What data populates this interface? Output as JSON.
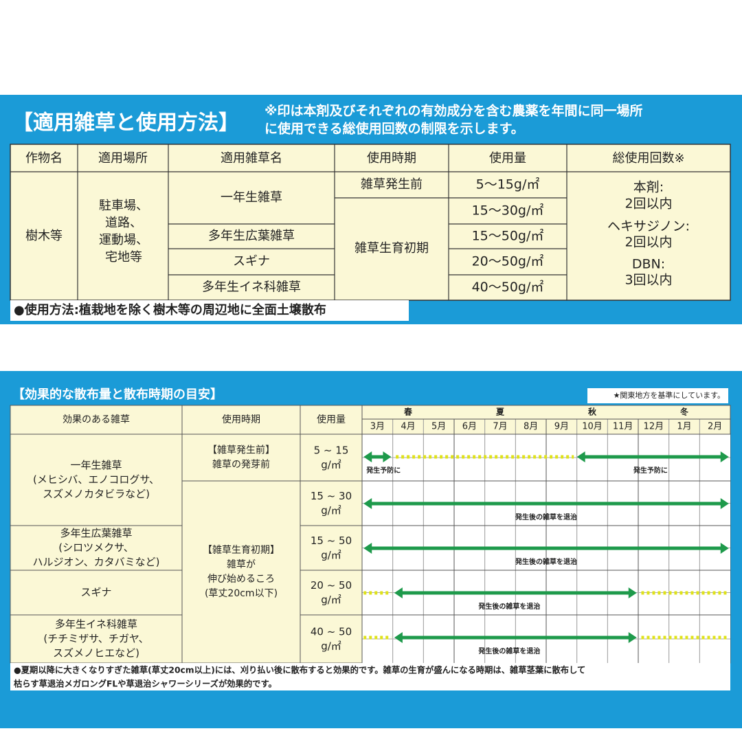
{
  "usage_table": {
    "title": "【適用雑草と使用方法】",
    "note": [
      "※印は本剤及びそれぞれの有効成分を含む農薬を年間に同一場所",
      "に使用できる総使用回数の制限を示します。"
    ],
    "headers": [
      "作物名",
      "適用場所",
      "適用雑草名",
      "使用時期",
      "使用量",
      "総使用回数※"
    ],
    "crop": "樹木等",
    "place": [
      "駐車場、",
      "道路、",
      "運動場、",
      "宅地等"
    ],
    "weeds": [
      "一年生雑草",
      "多年生広葉雑草",
      "スギナ",
      "多年生イネ科雑草"
    ],
    "timing": [
      "雑草発生前",
      "雑草生育初期"
    ],
    "amounts": [
      "5〜15g/㎡",
      "15〜30g/㎡",
      "15〜50g/㎡",
      "20〜50g/㎡",
      "40〜50g/㎡"
    ],
    "limits": [
      "本剤:",
      "2回以内",
      "ヘキサジノン:",
      "2回以内",
      "DBN:",
      "3回以内"
    ],
    "method": "●使用方法:植栽地を除く樹木等の周辺地に全面土壌散布"
  },
  "schedule_table": {
    "title": "【効果的な散布量と散布時期の目安】",
    "note": "★関東地方を基準にしています。",
    "headers": [
      "効果のある雑草",
      "使用時期",
      "使用量"
    ],
    "seasons": [
      "春",
      "夏",
      "秋",
      "冬"
    ],
    "months": [
      "3月",
      "4月",
      "5月",
      "6月",
      "7月",
      "8月",
      "9月",
      "10月",
      "11月",
      "12月",
      "1月",
      "2月"
    ],
    "weeds": [
      {
        "name": "一年生雑草",
        "examples": [
          "(メヒシバ、エノコログサ、",
          "スズメノカタビラなど)"
        ]
      },
      {
        "name": "多年生広葉雑草",
        "examples": [
          "(シロツメクサ、",
          "ハルジオン、カタバミなど)"
        ]
      },
      {
        "name": "スギナ",
        "examples": []
      },
      {
        "name": "多年生イネ科雑草",
        "examples": [
          "(チチミザサ、チガヤ、",
          "スズメノヒエなど)"
        ]
      }
    ],
    "timing": [
      [
        "【雑草発生前】",
        "雑草の発芽前"
      ],
      [
        "【雑草生育初期】",
        "雑草が",
        "伸び始めるころ",
        "(草丈20cm以下)"
      ]
    ],
    "amounts": [
      [
        "5 ~ 15",
        "g/㎡"
      ],
      [
        "15 ~ 30",
        "g/㎡"
      ],
      [
        "15 ~ 50",
        "g/㎡"
      ],
      [
        "20 ~ 50",
        "g/㎡"
      ],
      [
        "40 ~ 50",
        "g/㎡"
      ]
    ],
    "arrow_labels": [
      [
        "発生予防に",
        "発生予防に"
      ],
      [
        "発生後の雑草を退治"
      ],
      [
        "発生後の雑草を退治"
      ],
      [
        "発生後の雑草を退治"
      ],
      [
        "発生後の雑草を退治"
      ]
    ],
    "footer": [
      "●夏期以降に大きくなりすぎた雑草(草丈20cm以上)には、刈り払い後に散布すると効果的です。雑草の生育が盛んになる時期は、雑草茎葉に散布して",
      "枯らす草退治メガロングFLや草退治シャワーシリーズが効果的です。"
    ]
  }
}
